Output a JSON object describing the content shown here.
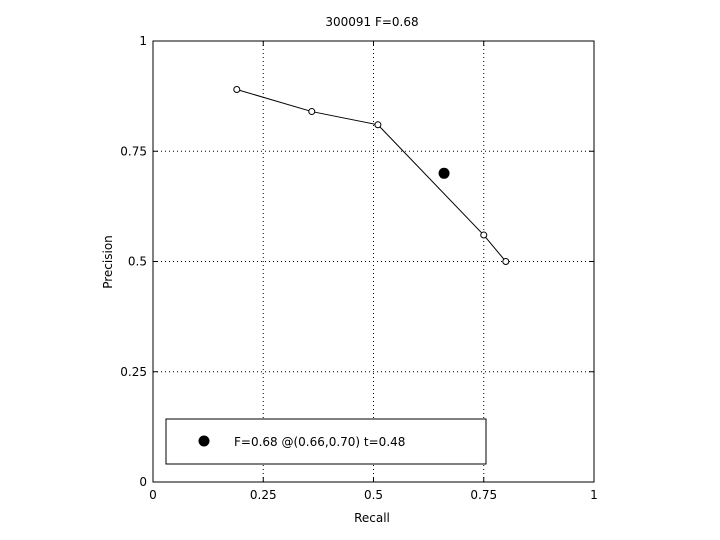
{
  "chart_data": {
    "type": "line",
    "title": "300091 F=0.68",
    "xlabel": "Recall",
    "ylabel": "Precision",
    "xlim": [
      0,
      1
    ],
    "ylim": [
      0,
      1
    ],
    "xticks": [
      0,
      0.25,
      0.5,
      0.75,
      1
    ],
    "yticks": [
      0,
      0.25,
      0.5,
      0.75,
      1
    ],
    "xtick_labels": [
      "0",
      "0.25",
      "0.5",
      "0.75",
      "1"
    ],
    "ytick_labels": [
      "0",
      "0.25",
      "0.5",
      "0.75",
      "1"
    ],
    "grid": true,
    "series": [
      {
        "x": [
          0.19,
          0.36,
          0.51,
          0.75,
          0.8
        ],
        "y": [
          0.89,
          0.84,
          0.81,
          0.56,
          0.5
        ]
      }
    ],
    "best_point": {
      "x": 0.66,
      "y": 0.7
    },
    "legend": {
      "placement": "bottom-left",
      "text": "F=0.68 @(0.66,0.70) t=0.48"
    }
  }
}
